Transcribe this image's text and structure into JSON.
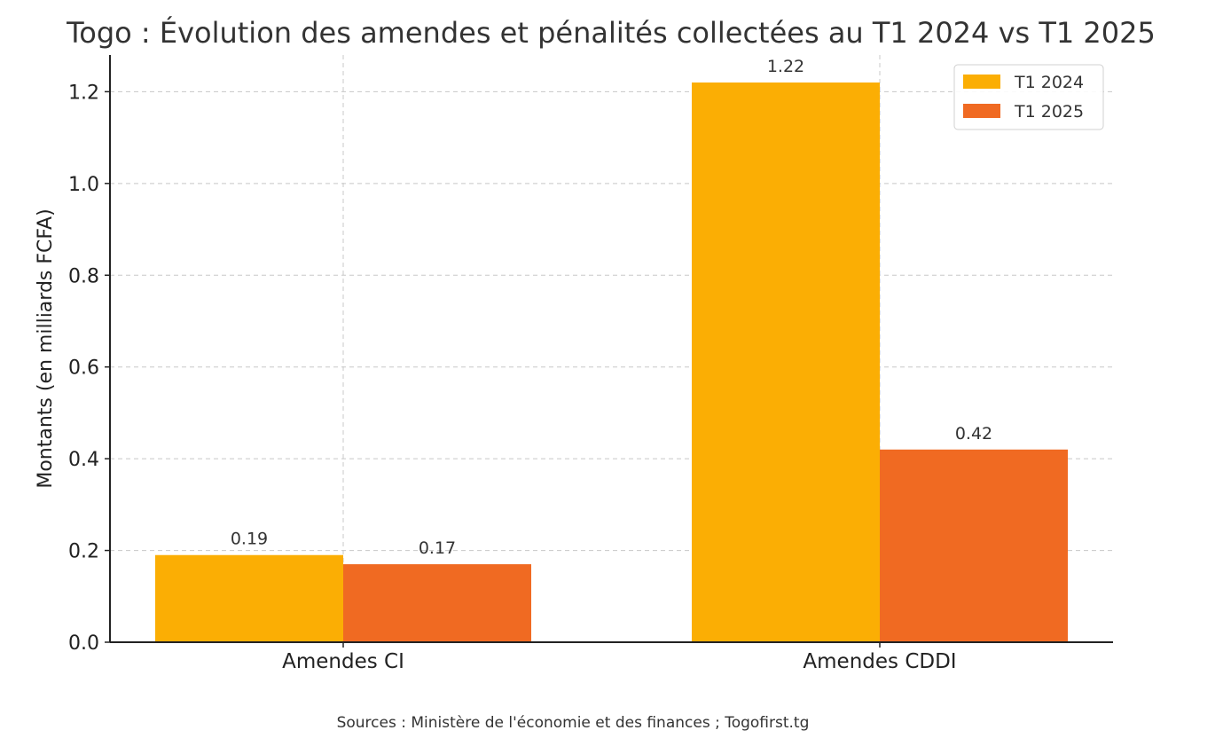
{
  "chart_data": {
    "type": "bar",
    "title": "Togo : Évolution des amendes et pénalités collectées au T1 2024 vs T1 2025",
    "xlabel": "",
    "ylabel": "Montants (en milliards FCFA)",
    "categories": [
      "Amendes CI",
      "Amendes CDDI"
    ],
    "series": [
      {
        "name": "T1 2024",
        "color": "#FBAE04",
        "values": [
          0.19,
          1.22
        ],
        "labels": [
          "0.19",
          "1.22"
        ]
      },
      {
        "name": "T1 2025",
        "color": "#F06A22",
        "values": [
          0.17,
          0.42
        ],
        "labels": [
          "0.17",
          "0.42"
        ]
      }
    ],
    "ylim": [
      0,
      1.28
    ],
    "yticks": [
      0.0,
      0.2,
      0.4,
      0.6,
      0.8,
      1.0,
      1.2
    ],
    "ytick_labels": [
      "0.0",
      "0.2",
      "0.4",
      "0.6",
      "0.8",
      "1.0",
      "1.2"
    ],
    "grid": true,
    "legend_position": "top-right",
    "source": "Sources : Ministère de l'économie et des finances ; Togofirst.tg"
  }
}
